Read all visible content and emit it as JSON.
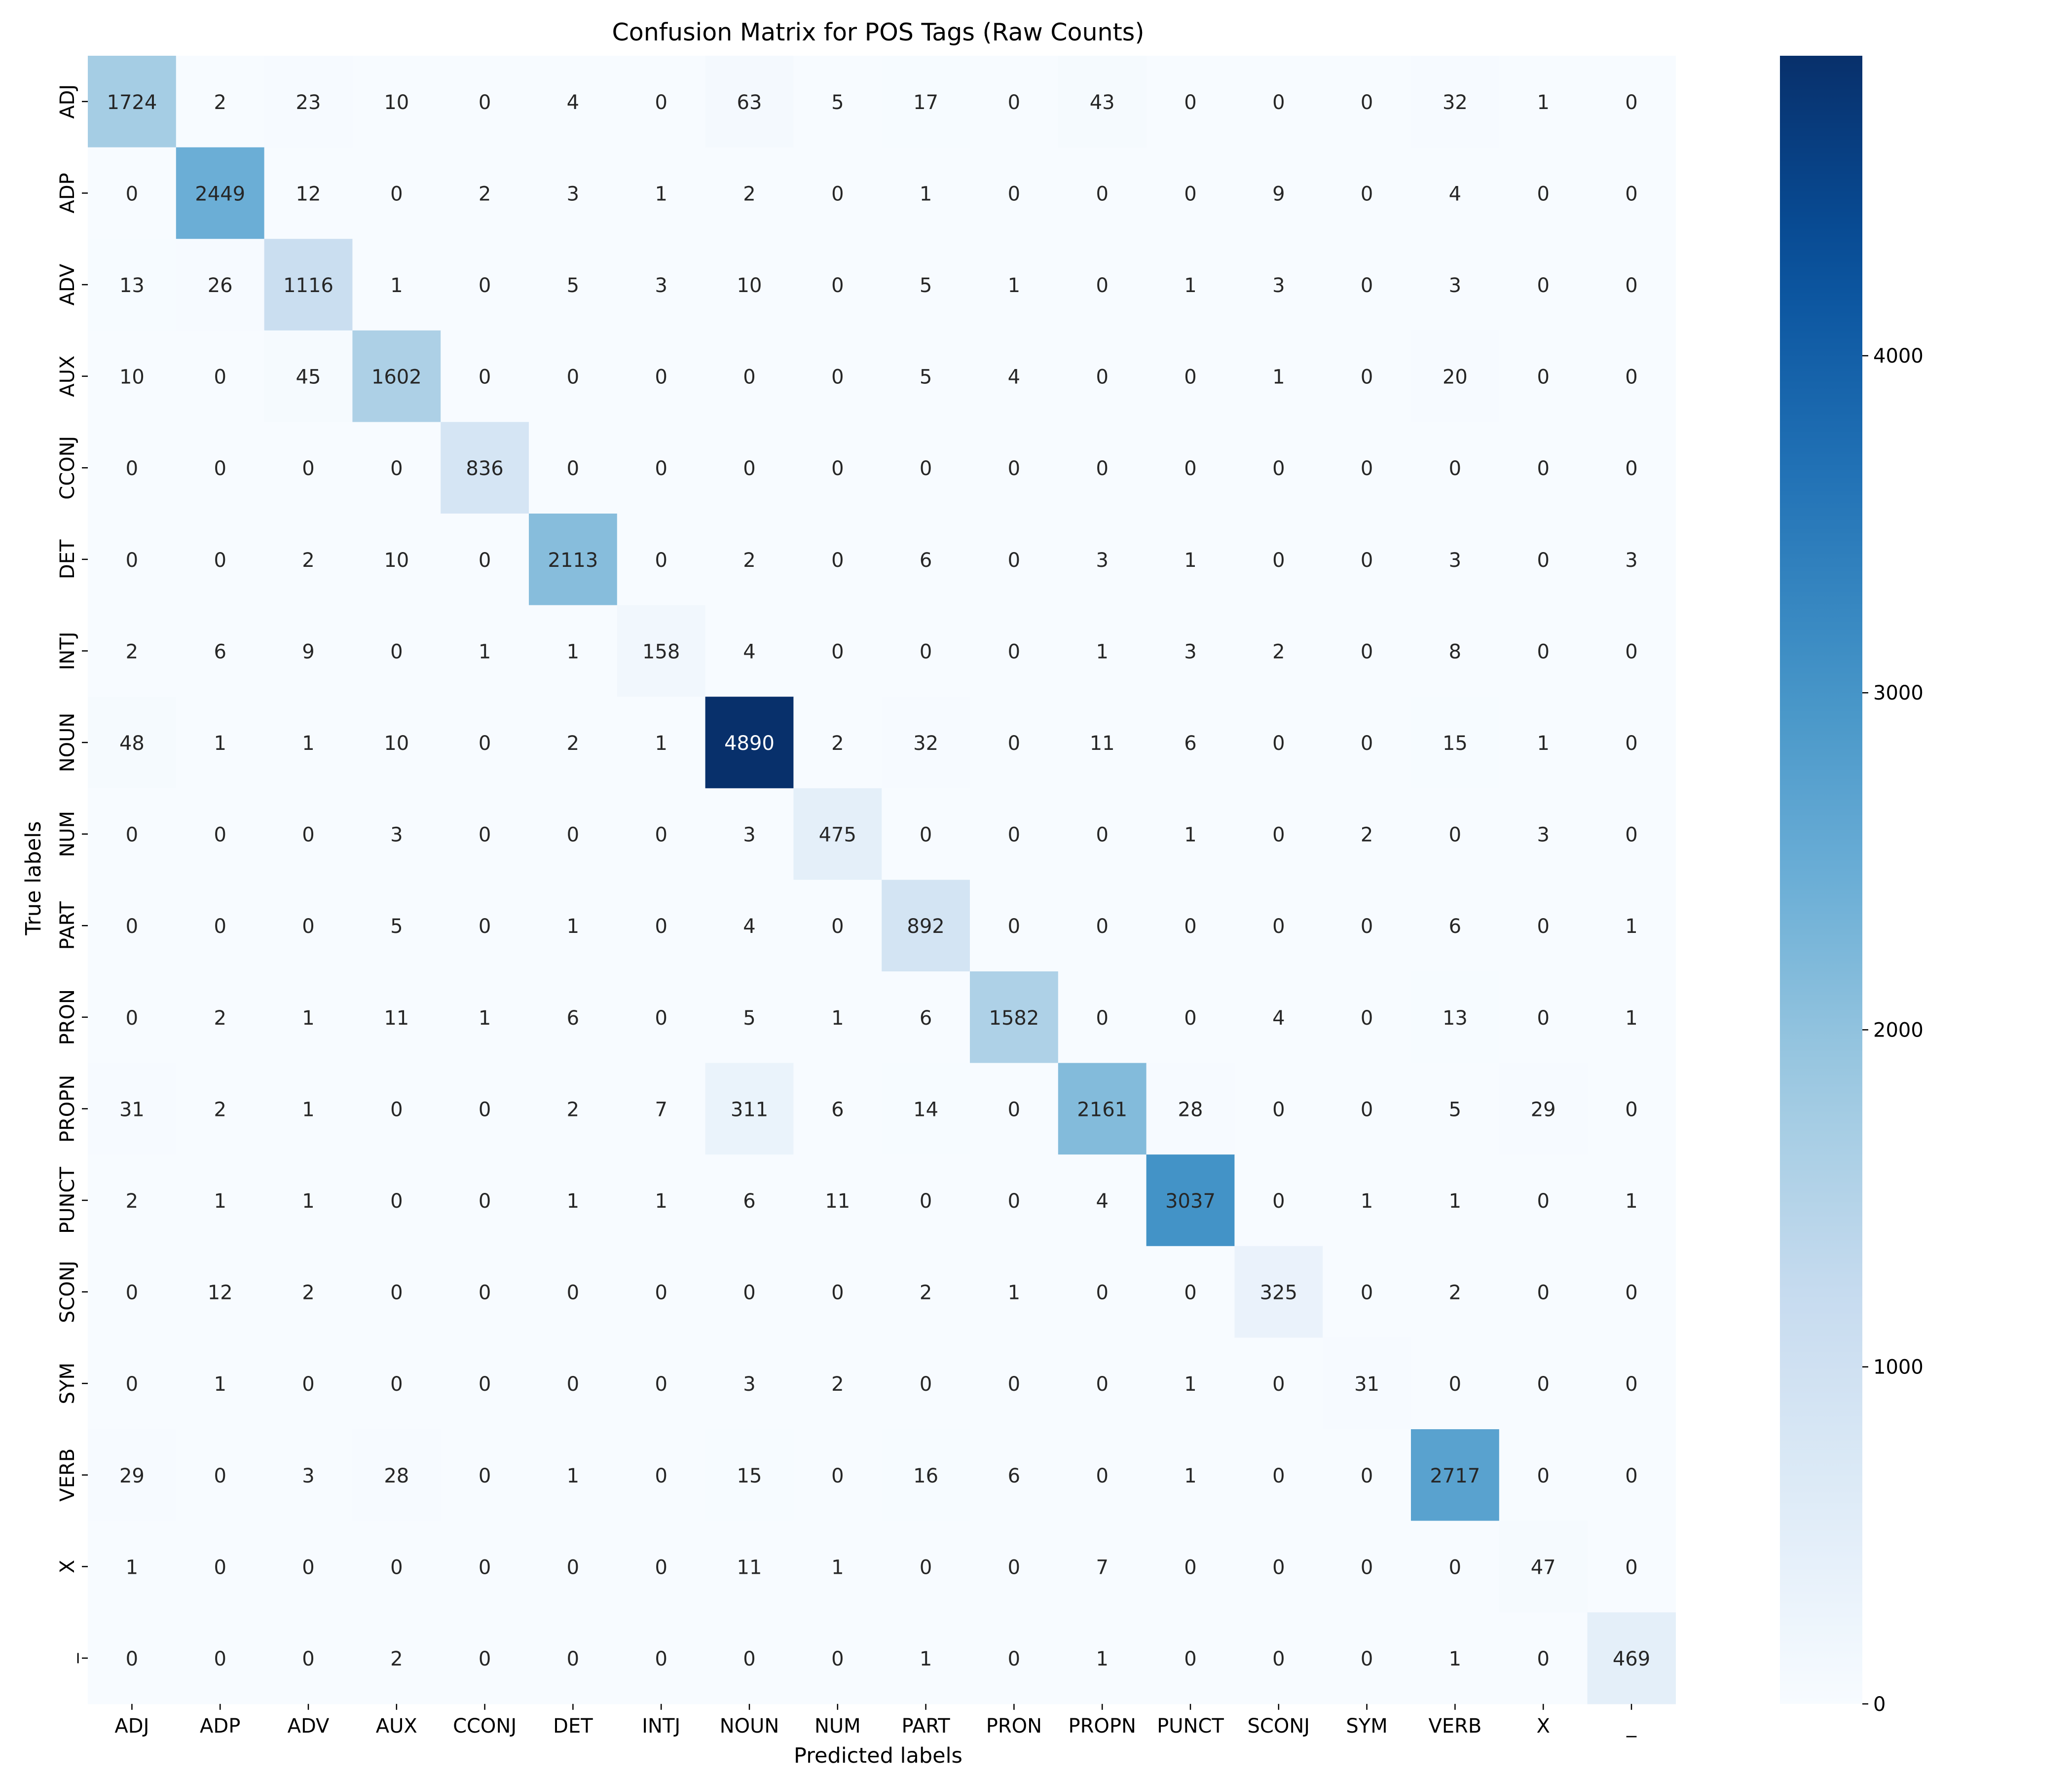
{
  "chart_data": {
    "type": "heatmap",
    "title": "Confusion Matrix for POS Tags (Raw Counts)",
    "xlabel": "Predicted labels",
    "ylabel": "True labels",
    "x_categories": [
      "ADJ",
      "ADP",
      "ADV",
      "AUX",
      "CCONJ",
      "DET",
      "INTJ",
      "NOUN",
      "NUM",
      "PART",
      "PRON",
      "PROPN",
      "PUNCT",
      "SCONJ",
      "SYM",
      "VERB",
      "X",
      "_"
    ],
    "y_categories": [
      "ADJ",
      "ADP",
      "ADV",
      "AUX",
      "CCONJ",
      "DET",
      "INTJ",
      "NOUN",
      "NUM",
      "PART",
      "PRON",
      "PROPN",
      "PUNCT",
      "SCONJ",
      "SYM",
      "VERB",
      "X",
      "_"
    ],
    "matrix": [
      [
        1724,
        2,
        23,
        10,
        0,
        4,
        0,
        63,
        5,
        17,
        0,
        43,
        0,
        0,
        0,
        32,
        1,
        0
      ],
      [
        0,
        2449,
        12,
        0,
        2,
        3,
        1,
        2,
        0,
        1,
        0,
        0,
        0,
        9,
        0,
        4,
        0,
        0
      ],
      [
        13,
        26,
        1116,
        1,
        0,
        5,
        3,
        10,
        0,
        5,
        1,
        0,
        1,
        3,
        0,
        3,
        0,
        0
      ],
      [
        10,
        0,
        45,
        1602,
        0,
        0,
        0,
        0,
        0,
        5,
        4,
        0,
        0,
        1,
        0,
        20,
        0,
        0
      ],
      [
        0,
        0,
        0,
        0,
        836,
        0,
        0,
        0,
        0,
        0,
        0,
        0,
        0,
        0,
        0,
        0,
        0,
        0
      ],
      [
        0,
        0,
        2,
        10,
        0,
        2113,
        0,
        2,
        0,
        6,
        0,
        3,
        1,
        0,
        0,
        3,
        0,
        3
      ],
      [
        2,
        6,
        9,
        0,
        1,
        1,
        158,
        4,
        0,
        0,
        0,
        1,
        3,
        2,
        0,
        8,
        0,
        0
      ],
      [
        48,
        1,
        1,
        10,
        0,
        2,
        1,
        4890,
        2,
        32,
        0,
        11,
        6,
        0,
        0,
        15,
        1,
        0
      ],
      [
        0,
        0,
        0,
        3,
        0,
        0,
        0,
        3,
        475,
        0,
        0,
        0,
        1,
        0,
        2,
        0,
        3,
        0
      ],
      [
        0,
        0,
        0,
        5,
        0,
        1,
        0,
        4,
        0,
        892,
        0,
        0,
        0,
        0,
        0,
        6,
        0,
        1
      ],
      [
        0,
        2,
        1,
        11,
        1,
        6,
        0,
        5,
        1,
        6,
        1582,
        0,
        0,
        4,
        0,
        13,
        0,
        1
      ],
      [
        31,
        2,
        1,
        0,
        0,
        2,
        7,
        311,
        6,
        14,
        0,
        2161,
        28,
        0,
        0,
        5,
        29,
        0
      ],
      [
        2,
        1,
        1,
        0,
        0,
        1,
        1,
        6,
        11,
        0,
        0,
        4,
        3037,
        0,
        1,
        1,
        0,
        1
      ],
      [
        0,
        12,
        2,
        0,
        0,
        0,
        0,
        0,
        0,
        2,
        1,
        0,
        0,
        325,
        0,
        2,
        0,
        0
      ],
      [
        0,
        1,
        0,
        0,
        0,
        0,
        0,
        3,
        2,
        0,
        0,
        0,
        1,
        0,
        31,
        0,
        0,
        0
      ],
      [
        29,
        0,
        3,
        28,
        0,
        1,
        0,
        15,
        0,
        16,
        6,
        0,
        1,
        0,
        0,
        2717,
        0,
        0
      ],
      [
        1,
        0,
        0,
        0,
        0,
        0,
        0,
        11,
        1,
        0,
        0,
        7,
        0,
        0,
        0,
        0,
        47,
        0
      ],
      [
        0,
        0,
        0,
        2,
        0,
        0,
        0,
        0,
        0,
        1,
        0,
        1,
        0,
        0,
        0,
        1,
        0,
        469
      ]
    ],
    "colormap": "Blues",
    "colorbar": {
      "min": 0,
      "max": 4890,
      "ticks": [
        0,
        1000,
        2000,
        3000,
        4000
      ]
    },
    "grid": false,
    "legend": "none"
  }
}
